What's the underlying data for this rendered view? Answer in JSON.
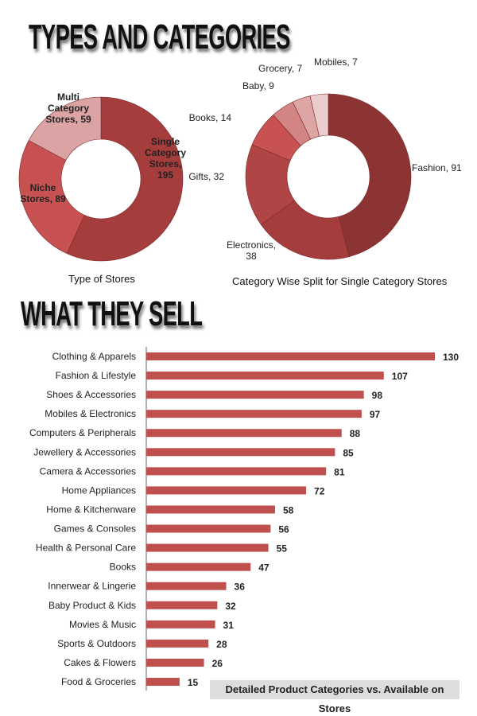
{
  "headings": {
    "types": "TYPES AND CATEGORIES",
    "sell": "WHAT THEY SELL"
  },
  "chart_data": [
    {
      "type": "pie",
      "donut": true,
      "title": "Type of Stores",
      "labels": [
        "Single Category Stores",
        "Niche Stores",
        "Multi Category Stores"
      ],
      "label_text": [
        "Single Category Stores, 195",
        "Niche Stores, 89",
        "Multi Category Stores, 59"
      ],
      "values": [
        195,
        89,
        59
      ],
      "colors": [
        "#a53d3d",
        "#c85252",
        "#dba3a3"
      ]
    },
    {
      "type": "pie",
      "donut": true,
      "title": "Category Wise Split for Single Category Stores",
      "labels": [
        "Fashion",
        "Electronics",
        "Gifts",
        "Books",
        "Baby",
        "Grocery",
        "Mobiles"
      ],
      "label_text": [
        "Fashion, 91",
        "Electronics, 38",
        "Gifts, 32",
        "Books, 14",
        "Baby, 9",
        "Grocery, 7",
        "Mobiles, 7"
      ],
      "values": [
        91,
        38,
        32,
        14,
        9,
        7,
        7
      ],
      "colors": [
        "#8c3434",
        "#a53d3d",
        "#b04545",
        "#c85252",
        "#d38585",
        "#dea5a5",
        "#ebcccc"
      ]
    },
    {
      "type": "bar",
      "orientation": "horizontal",
      "title": "Detailed Product Categories vs. Available on Stores",
      "categories": [
        "Clothing & Apparels",
        "Fashion & Lifestyle",
        "Shoes & Accessories",
        "Mobiles & Electronics",
        "Computers & Peripherals",
        "Jewellery & Accessories",
        "Camera & Accessories",
        "Home Appliances",
        "Home & Kitchenware",
        "Games & Consoles",
        "Health & Personal Care",
        "Books",
        "Innerwear & Lingerie",
        "Baby Product & Kids",
        "Movies & Music",
        "Sports & Outdoors",
        "Cakes & Flowers",
        "Food & Groceries"
      ],
      "values": [
        130,
        107,
        98,
        97,
        88,
        85,
        81,
        72,
        58,
        56,
        55,
        47,
        36,
        32,
        31,
        28,
        26,
        15
      ],
      "color": "#c0504d",
      "xlim": [
        0,
        130
      ]
    }
  ]
}
